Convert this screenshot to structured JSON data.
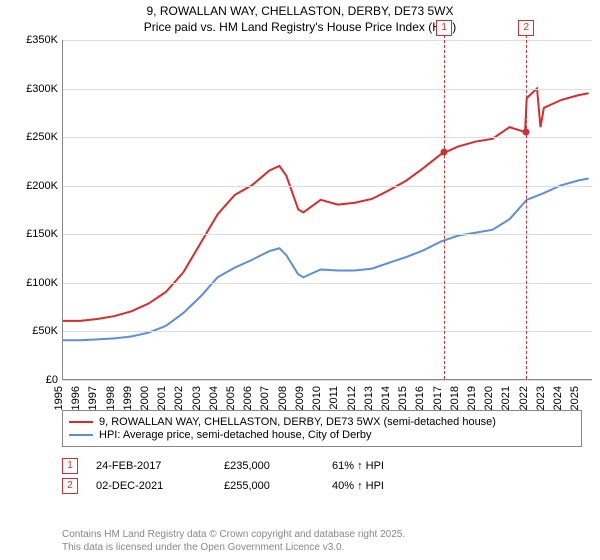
{
  "title_line1": "9, ROWALLAN WAY, CHELLASTON, DERBY, DE73 5WX",
  "title_line2": "Price paid vs. HM Land Registry's House Price Index (HPI)",
  "chart": {
    "type": "line",
    "background_color": "#ffffff",
    "grid_color": "#dddddd",
    "axis_color": "#888888",
    "xlim": [
      1995,
      2025.8
    ],
    "ylim": [
      0,
      350000
    ],
    "ytick_step": 50000,
    "yticks": [
      {
        "v": 0,
        "label": "£0"
      },
      {
        "v": 50000,
        "label": "£50K"
      },
      {
        "v": 100000,
        "label": "£100K"
      },
      {
        "v": 150000,
        "label": "£150K"
      },
      {
        "v": 200000,
        "label": "£200K"
      },
      {
        "v": 250000,
        "label": "£250K"
      },
      {
        "v": 300000,
        "label": "£300K"
      },
      {
        "v": 350000,
        "label": "£350K"
      }
    ],
    "xticks": [
      1995,
      1996,
      1997,
      1998,
      1999,
      2000,
      2001,
      2002,
      2003,
      2004,
      2005,
      2006,
      2007,
      2008,
      2009,
      2010,
      2011,
      2012,
      2013,
      2014,
      2015,
      2016,
      2017,
      2018,
      2019,
      2020,
      2021,
      2022,
      2023,
      2024,
      2025
    ],
    "series": [
      {
        "name": "9, ROWALLAN WAY, CHELLASTON, DERBY, DE73 5WX (semi-detached house)",
        "color": "#d82c2c",
        "line_width": 2,
        "points": [
          [
            1995,
            60000
          ],
          [
            1996,
            60000
          ],
          [
            1997,
            62000
          ],
          [
            1998,
            65000
          ],
          [
            1999,
            70000
          ],
          [
            2000,
            78000
          ],
          [
            2001,
            90000
          ],
          [
            2002,
            110000
          ],
          [
            2003,
            140000
          ],
          [
            2004,
            170000
          ],
          [
            2005,
            190000
          ],
          [
            2006,
            200000
          ],
          [
            2007,
            215000
          ],
          [
            2007.6,
            220000
          ],
          [
            2008,
            210000
          ],
          [
            2008.7,
            175000
          ],
          [
            2009,
            172000
          ],
          [
            2010,
            185000
          ],
          [
            2011,
            180000
          ],
          [
            2012,
            182000
          ],
          [
            2013,
            186000
          ],
          [
            2014,
            195000
          ],
          [
            2015,
            205000
          ],
          [
            2016,
            218000
          ],
          [
            2017,
            232000
          ],
          [
            2018,
            240000
          ],
          [
            2019,
            245000
          ],
          [
            2020,
            248000
          ],
          [
            2021,
            260000
          ],
          [
            2021.9,
            255000
          ],
          [
            2022,
            290000
          ],
          [
            2022.6,
            300000
          ],
          [
            2022.8,
            260000
          ],
          [
            2023,
            280000
          ],
          [
            2024,
            288000
          ],
          [
            2025,
            293000
          ],
          [
            2025.6,
            295000
          ]
        ]
      },
      {
        "name": "HPI: Average price, semi-detached house, City of Derby",
        "color": "#5b8fd6",
        "line_width": 2,
        "points": [
          [
            1995,
            40000
          ],
          [
            1996,
            40000
          ],
          [
            1997,
            41000
          ],
          [
            1998,
            42000
          ],
          [
            1999,
            44000
          ],
          [
            2000,
            48000
          ],
          [
            2001,
            55000
          ],
          [
            2002,
            68000
          ],
          [
            2003,
            85000
          ],
          [
            2004,
            105000
          ],
          [
            2005,
            115000
          ],
          [
            2006,
            123000
          ],
          [
            2007,
            132000
          ],
          [
            2007.6,
            135000
          ],
          [
            2008,
            128000
          ],
          [
            2008.7,
            108000
          ],
          [
            2009,
            105000
          ],
          [
            2010,
            113000
          ],
          [
            2011,
            112000
          ],
          [
            2012,
            112000
          ],
          [
            2013,
            114000
          ],
          [
            2014,
            120000
          ],
          [
            2015,
            126000
          ],
          [
            2016,
            133000
          ],
          [
            2017,
            142000
          ],
          [
            2018,
            148000
          ],
          [
            2019,
            151000
          ],
          [
            2020,
            154000
          ],
          [
            2021,
            165000
          ],
          [
            2022,
            185000
          ],
          [
            2023,
            192000
          ],
          [
            2024,
            200000
          ],
          [
            2025,
            205000
          ],
          [
            2025.6,
            207000
          ]
        ]
      }
    ],
    "markers": [
      {
        "n": "1",
        "x": 2017.15,
        "y": 235000
      },
      {
        "n": "2",
        "x": 2021.92,
        "y": 255000
      }
    ],
    "label_fontsize": 11,
    "title_fontsize": 12
  },
  "legend": {
    "items": [
      {
        "color": "#d82c2c",
        "label": "9, ROWALLAN WAY, CHELLASTON, DERBY, DE73 5WX (semi-detached house)"
      },
      {
        "color": "#5b8fd6",
        "label": "HPI: Average price, semi-detached house, City of Derby"
      }
    ]
  },
  "sales": [
    {
      "n": "1",
      "date": "24-FEB-2017",
      "price": "£235,000",
      "pct": "61% ↑ HPI"
    },
    {
      "n": "2",
      "date": "02-DEC-2021",
      "price": "£255,000",
      "pct": "40% ↑ HPI"
    }
  ],
  "footer_line1": "Contains HM Land Registry data © Crown copyright and database right 2025.",
  "footer_line2": "This data is licensed under the Open Government Licence v3.0."
}
